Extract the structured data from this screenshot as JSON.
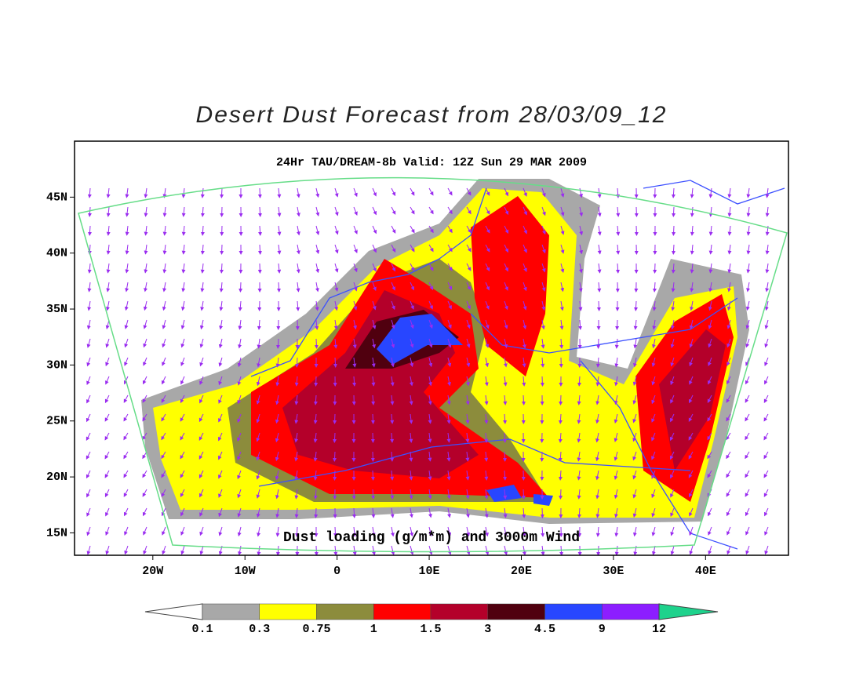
{
  "title": "Desert Dust Forecast from 28/03/09_12",
  "subtitle": "24Hr TAU/DREAM-8b Valid: 12Z Sun 29 MAR 2009",
  "caption": "Dust loading (g/m*m) and 3000m Wind",
  "lonlim": [
    -28.5,
    49
  ],
  "latlim": [
    13,
    50
  ],
  "lat_ticks": [
    {
      "value": 15,
      "label": "15N"
    },
    {
      "value": 20,
      "label": "20N"
    },
    {
      "value": 25,
      "label": "25N"
    },
    {
      "value": 30,
      "label": "30N"
    },
    {
      "value": 35,
      "label": "35N"
    },
    {
      "value": 40,
      "label": "40N"
    },
    {
      "value": 45,
      "label": "45N"
    }
  ],
  "lon_ticks": [
    {
      "value": -20,
      "label": "20W"
    },
    {
      "value": -10,
      "label": "10W"
    },
    0,
    {
      "value": 10,
      "label": "10E"
    },
    {
      "value": 20,
      "label": "20E"
    },
    {
      "value": 30,
      "label": "30E"
    },
    {
      "value": 40,
      "label": "40E"
    }
  ],
  "legend": {
    "levels": [
      "0.1",
      "0.3",
      "0.75",
      "1",
      "1.5",
      "3",
      "4.5",
      "9",
      "12"
    ],
    "colors": [
      "#ffffff",
      "#a8a8a8",
      "#ffff00",
      "#8c8c3c",
      "#ff0000",
      "#b4002a",
      "#50000f",
      "#2846ff",
      "#8c1eff",
      "#1ed28c"
    ]
  }
}
